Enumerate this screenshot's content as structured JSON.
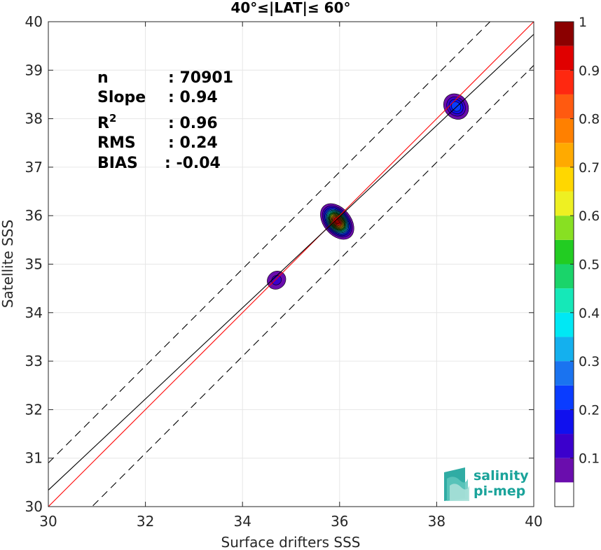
{
  "chart_data": {
    "type": "heatmap",
    "title": "40°≤|LAT|≤ 60°",
    "xlabel": "Surface drifters SSS",
    "ylabel": "Satellite SSS",
    "xlim": [
      30,
      40
    ],
    "ylim": [
      30,
      40
    ],
    "xticks": [
      30,
      32,
      34,
      36,
      38,
      40
    ],
    "yticks": [
      30,
      31,
      32,
      33,
      34,
      35,
      36,
      37,
      38,
      39,
      40
    ],
    "grid": true,
    "stats": [
      {
        "label": "n",
        "value": ": 70901"
      },
      {
        "label": "Slope",
        "value": ": 0.94"
      },
      {
        "label": "R",
        "sup": "2",
        "value": ": 0.96"
      },
      {
        "label": "RMS",
        "value": ": 0.24"
      },
      {
        "label": "BIAS",
        "value": ": -0.04"
      }
    ],
    "lines": [
      {
        "name": "one-to-one",
        "color": "#ff0000",
        "style": "solid",
        "slope": 1.0,
        "intercept": 0.0
      },
      {
        "name": "regression",
        "color": "#000000",
        "style": "solid",
        "slope": 0.94,
        "intercept": 2.14
      },
      {
        "name": "upper-bound",
        "color": "#000000",
        "style": "dashed",
        "slope": 1.0,
        "intercept": 0.9
      },
      {
        "name": "lower-bound",
        "color": "#000000",
        "style": "dashed",
        "slope": 1.0,
        "intercept": -0.9
      }
    ],
    "density_clusters": [
      {
        "name": "cluster-main",
        "x": 35.95,
        "y": 35.88,
        "peak": 1.0,
        "sx": 0.28,
        "sy": 0.42,
        "rot": -40
      },
      {
        "name": "cluster-high",
        "x": 38.4,
        "y": 38.25,
        "peak": 0.25,
        "sx": 0.24,
        "sy": 0.28,
        "rot": -40
      },
      {
        "name": "cluster-low",
        "x": 34.7,
        "y": 34.67,
        "peak": 0.13,
        "sx": 0.2,
        "sy": 0.18,
        "rot": -40
      }
    ],
    "colorbar": {
      "ticks": [
        0.1,
        0.2,
        0.3,
        0.4,
        0.5,
        0.6,
        0.7,
        0.8,
        0.9,
        1
      ],
      "tick_labels": [
        "0.1",
        "0.2",
        "0.3",
        "0.4",
        "0.5",
        "0.6",
        "0.7",
        "0.8",
        "0.9",
        "1"
      ],
      "range": [
        0,
        1
      ],
      "levels": [
        {
          "from": 0.0,
          "to": 0.05,
          "color": "#ffffff"
        },
        {
          "from": 0.05,
          "to": 0.1,
          "color": "#6a0dad"
        },
        {
          "from": 0.1,
          "to": 0.15,
          "color": "#3b00cc"
        },
        {
          "from": 0.15,
          "to": 0.2,
          "color": "#1010ee"
        },
        {
          "from": 0.2,
          "to": 0.25,
          "color": "#0a3cff"
        },
        {
          "from": 0.25,
          "to": 0.3,
          "color": "#1a73f0"
        },
        {
          "from": 0.3,
          "to": 0.35,
          "color": "#14b0ee"
        },
        {
          "from": 0.35,
          "to": 0.4,
          "color": "#00e8f4"
        },
        {
          "from": 0.4,
          "to": 0.45,
          "color": "#15e8b8"
        },
        {
          "from": 0.45,
          "to": 0.5,
          "color": "#1ad46a"
        },
        {
          "from": 0.5,
          "to": 0.55,
          "color": "#22cc22"
        },
        {
          "from": 0.55,
          "to": 0.6,
          "color": "#88e022"
        },
        {
          "from": 0.6,
          "to": 0.65,
          "color": "#eef022"
        },
        {
          "from": 0.65,
          "to": 0.7,
          "color": "#ffd700"
        },
        {
          "from": 0.7,
          "to": 0.75,
          "color": "#ffaa00"
        },
        {
          "from": 0.75,
          "to": 0.8,
          "color": "#ff8000"
        },
        {
          "from": 0.8,
          "to": 0.85,
          "color": "#ff5a10"
        },
        {
          "from": 0.85,
          "to": 0.9,
          "color": "#ff2810"
        },
        {
          "from": 0.9,
          "to": 0.95,
          "color": "#e00000"
        },
        {
          "from": 0.95,
          "to": 1.0,
          "color": "#8b0000"
        }
      ]
    },
    "logo": {
      "line1": "salinity",
      "line2": "pi-mep"
    }
  }
}
